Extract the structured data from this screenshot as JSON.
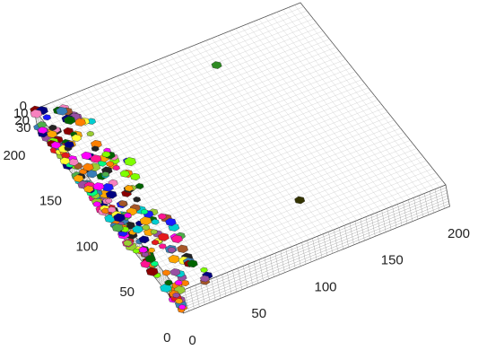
{
  "chart_data": {
    "type": "voxel-box",
    "xlim": [
      0,
      200
    ],
    "ylim": [
      0,
      200
    ],
    "zlim": [
      0,
      30
    ],
    "xticks": [
      0,
      50,
      100,
      150,
      200
    ],
    "yticks": [
      0,
      50,
      100,
      150,
      200
    ],
    "zticks": [
      0,
      10,
      20,
      30
    ]
  }
}
